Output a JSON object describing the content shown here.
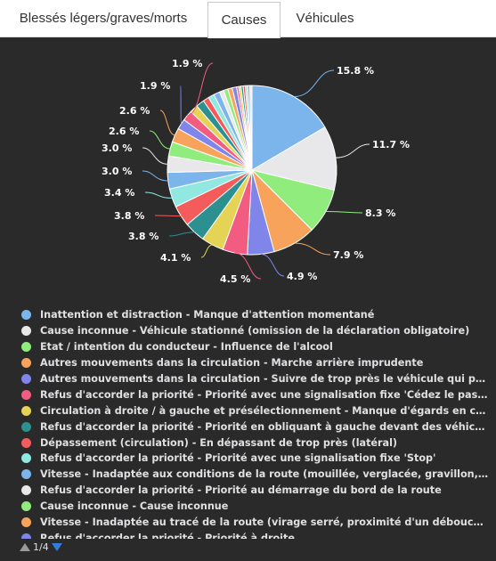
{
  "tabs": [
    {
      "label": "Blessés légers/graves/morts",
      "active": false
    },
    {
      "label": "Causes",
      "active": true
    },
    {
      "label": "Véhicules",
      "active": false
    }
  ],
  "pager": {
    "text": "1/4"
  },
  "chart_data": {
    "type": "pie",
    "slices": [
      {
        "label": "Inattention et distraction - Manque d'attention momentané",
        "value": 15.8,
        "color": "#7cb5ec"
      },
      {
        "label": "Cause inconnue - Véhicule stationné (omission de la déclaration obligatoire)",
        "value": 11.7,
        "color": "#e8e8ea"
      },
      {
        "label": "Etat / intention du conducteur - Influence de l'alcool",
        "value": 8.3,
        "color": "#90ed7d"
      },
      {
        "label": "Autres mouvements dans la circulation - Marche arrière imprudente",
        "value": 7.9,
        "color": "#f7a35c"
      },
      {
        "label": "Autres mouvements dans la circulation - Suivre de trop près le véhicule qui précède",
        "value": 4.9,
        "color": "#8085e9"
      },
      {
        "label": "Refus d'accorder la priorité - Priorité avec une signalisation fixe 'Cédez le passage'",
        "value": 4.5,
        "color": "#f15c80"
      },
      {
        "label": "Circulation à droite / à gauche et présélectionnement - Manque d'égards en changeant de voie",
        "value": 4.1,
        "color": "#e4d354"
      },
      {
        "label": "Refus d'accorder la priorité - Priorité en obliquant à gauche devant des véhicules venant en sens inverse",
        "value": 3.8,
        "color": "#2b908f"
      },
      {
        "label": "Dépassement (circulation) - En dépassant de trop près (latéral)",
        "value": 3.8,
        "color": "#f45b5b"
      },
      {
        "label": "Refus d'accorder la priorité - Priorité avec une signalisation fixe 'Stop'",
        "value": 3.4,
        "color": "#91e8e1"
      },
      {
        "label": "Vitesse - Inadaptée aux conditions de la route (mouillée, verglacée, gravillon, feuilles)",
        "value": 3.0,
        "color": "#7cb5ec"
      },
      {
        "label": "Refus d'accorder la priorité - Priorité au démarrage du bord de la route",
        "value": 3.0,
        "color": "#e8e8ea"
      },
      {
        "label": "Cause inconnue - Cause inconnue",
        "value": 2.6,
        "color": "#90ed7d"
      },
      {
        "label": "Vitesse - Inadaptée au tracé de la route (virage serré, proximité d'un débouché, arrêt)",
        "value": 2.6,
        "color": "#f7a35c"
      },
      {
        "label": "Refus d'accorder la priorité - Priorité à droite",
        "value": 1.9,
        "color": "#8085e9"
      },
      {
        "label": "",
        "value": 1.9,
        "color": "#f15c80"
      },
      {
        "label": "",
        "value": 1.5,
        "color": "#e4d354"
      },
      {
        "label": "",
        "value": 1.5,
        "color": "#2b908f"
      },
      {
        "label": "",
        "value": 1.1,
        "color": "#f45b5b"
      },
      {
        "label": "",
        "value": 1.1,
        "color": "#91e8e1"
      },
      {
        "label": "",
        "value": 1.1,
        "color": "#7cb5ec"
      },
      {
        "label": "",
        "value": 0.8,
        "color": "#e8e8ea"
      },
      {
        "label": "",
        "value": 0.8,
        "color": "#90ed7d"
      },
      {
        "label": "",
        "value": 0.8,
        "color": "#f7a35c"
      },
      {
        "label": "",
        "value": 0.8,
        "color": "#8085e9"
      },
      {
        "label": "",
        "value": 0.4,
        "color": "#f15c80"
      },
      {
        "label": "",
        "value": 0.4,
        "color": "#e4d354"
      },
      {
        "label": "",
        "value": 0.4,
        "color": "#2b908f"
      },
      {
        "label": "",
        "value": 0.4,
        "color": "#f45b5b"
      },
      {
        "label": "",
        "value": 0.4,
        "color": "#91e8e1"
      },
      {
        "label": "",
        "value": 0.4,
        "color": "#7cb5ec"
      },
      {
        "label": "",
        "value": 0.4,
        "color": "#e8e8ea"
      }
    ],
    "data_labels": [
      "15.8 %",
      "11.7 %",
      "8.3 %",
      "7.9 %",
      "4.9 %",
      "4.5 %",
      "4.1 %",
      "3.8 %",
      "3.8 %",
      "3.4 %",
      "3.0 %",
      "3.0 %",
      "2.6 %",
      "2.6 %",
      "1.9 %",
      "1.9 %"
    ],
    "legend": [
      "Inattention et distraction - Manque d'attention momentané",
      "Cause inconnue - Véhicule stationné (omission de la déclaration obligatoire)",
      "Etat / intention du conducteur - Influence de l'alcool",
      "Autres mouvements dans la circulation - Marche arrière imprudente",
      "Autres mouvements dans la circulation - Suivre de trop près le véhicule qui préc...",
      "Refus d'accorder la priorité - Priorité avec une signalisation fixe 'Cédez le passage'",
      "Circulation à droite / à gauche et présélectionnement - Manque d'égards en cha...",
      "Refus d'accorder la priorité - Priorité en obliquant à gauche devant des véhicules...",
      "Dépassement (circulation) - En dépassant de trop près (latéral)",
      "Refus d'accorder la priorité - Priorité avec une signalisation fixe 'Stop'",
      "Vitesse - Inadaptée aux conditions de la route (mouillée, verglacée, gravillon, fe...",
      "Refus d'accorder la priorité - Priorité au démarrage du bord de la route",
      "Cause inconnue - Cause inconnue",
      "Vitesse - Inadaptée au tracé de la route (virage serré, proximité d'un débouché, ...",
      "Refus d'accorder la priorité - Priorité à droite"
    ],
    "legend_colors": [
      "#7cb5ec",
      "#e8e8ea",
      "#90ed7d",
      "#f7a35c",
      "#8085e9",
      "#f15c80",
      "#e4d354",
      "#2b908f",
      "#f45b5b",
      "#91e8e1",
      "#7cb5ec",
      "#e8e8ea",
      "#90ed7d",
      "#f7a35c",
      "#8085e9"
    ],
    "legend_placement": "bottom"
  }
}
